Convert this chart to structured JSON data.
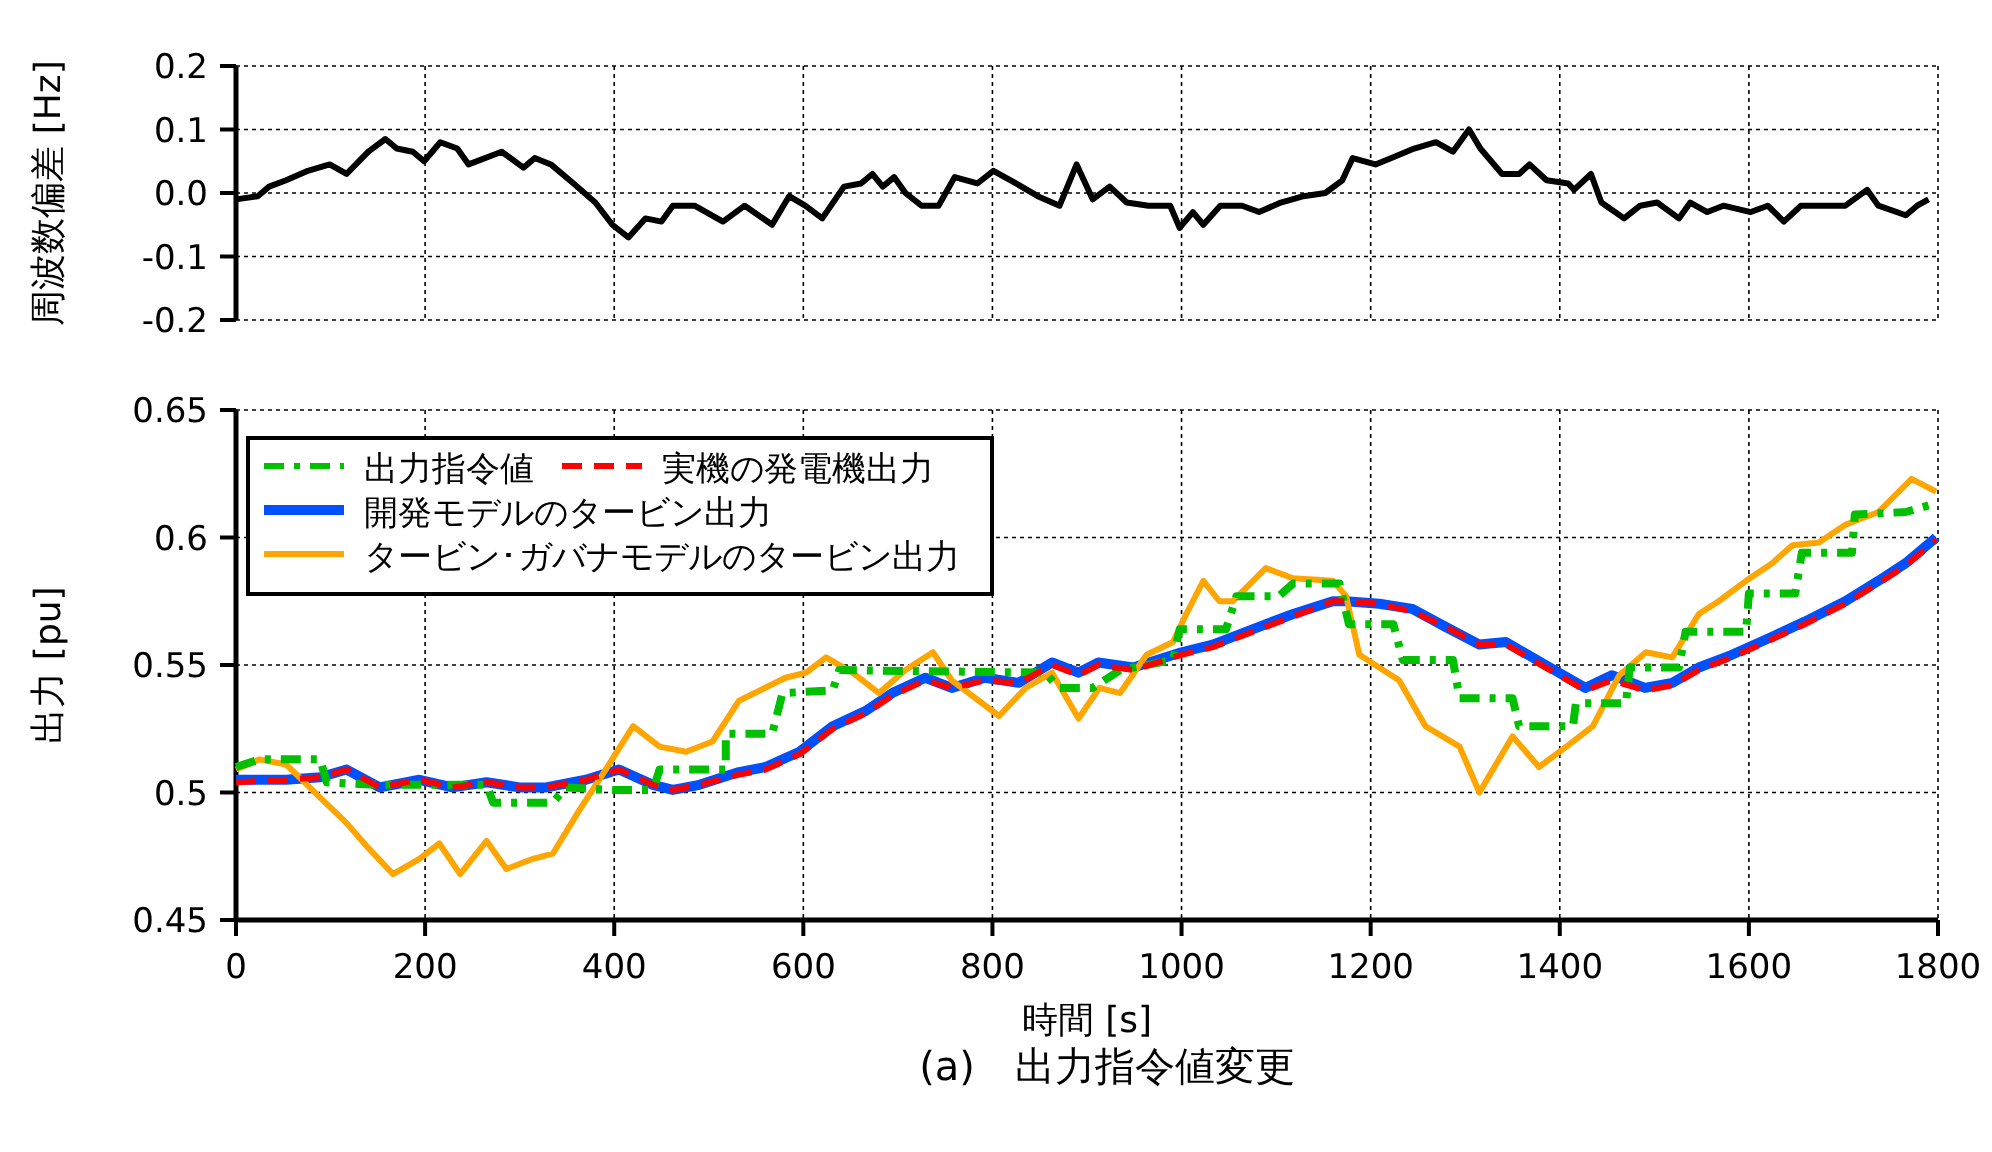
{
  "chart_data": [
    {
      "type": "line",
      "ylabel": "周波数偏差 [Hz]",
      "xlim": [
        0,
        1800
      ],
      "xticks": [
        0,
        200,
        400,
        600,
        800,
        1000,
        1200,
        1400,
        1600,
        1800
      ],
      "ylim": [
        -0.2,
        0.2
      ],
      "yticks": [
        {
          "value": -0.2,
          "label": "-0.2"
        },
        {
          "value": -0.1,
          "label": "-0.1"
        },
        {
          "value": 0,
          "label": "0.0"
        },
        {
          "value": 0.1,
          "label": "0.1"
        },
        {
          "value": 0.2,
          "label": "0.2"
        }
      ],
      "grid": true,
      "tick_labels": "y",
      "legend": false,
      "series": [
        {
          "color": "#000000",
          "line_style": "solid",
          "x": [
            0,
            23,
            35,
            53,
            76,
            99,
            117,
            140,
            158,
            170,
            187,
            199,
            216,
            234,
            246,
            281,
            304,
            316,
            333,
            357,
            380,
            398,
            415,
            433,
            450,
            462,
            485,
            515,
            538,
            567,
            585,
            602,
            620,
            643,
            661,
            673,
            684,
            696,
            708,
            725,
            743,
            760,
            784,
            801,
            825,
            848,
            871,
            889,
            906,
            924,
            942,
            965,
            988,
            998,
            1012,
            1023,
            1041,
            1064,
            1082,
            1105,
            1129,
            1152,
            1170,
            1181,
            1205,
            1222,
            1246,
            1269,
            1287,
            1304,
            1316,
            1339,
            1357,
            1368,
            1386,
            1409,
            1415,
            1433,
            1444,
            1468,
            1485,
            1503,
            1526,
            1538,
            1556,
            1573,
            1602,
            1620,
            1637,
            1655,
            1678,
            1702,
            1725,
            1737,
            1766,
            1778,
            1790
          ],
          "values": [
            -0.01,
            -0.005,
            0.01,
            0.02,
            0.035,
            0.045,
            0.03,
            0.065,
            0.085,
            0.07,
            0.065,
            0.05,
            0.08,
            0.07,
            0.045,
            0.065,
            0.04,
            0.055,
            0.045,
            0.015,
            -0.015,
            -0.05,
            -0.07,
            -0.04,
            -0.045,
            -0.02,
            -0.02,
            -0.045,
            -0.02,
            -0.05,
            -0.005,
            -0.02,
            -0.04,
            0.01,
            0.015,
            0.03,
            0.01,
            0.025,
            0.0,
            -0.02,
            -0.02,
            0.025,
            0.015,
            0.035,
            0.015,
            -0.005,
            -0.02,
            0.045,
            -0.01,
            0.01,
            -0.015,
            -0.02,
            -0.02,
            -0.055,
            -0.03,
            -0.05,
            -0.02,
            -0.02,
            -0.03,
            -0.015,
            -0.005,
            0.0,
            0.02,
            0.055,
            0.045,
            0.055,
            0.07,
            0.08,
            0.065,
            0.1,
            0.07,
            0.03,
            0.03,
            0.045,
            0.02,
            0.015,
            0.005,
            0.03,
            -0.015,
            -0.04,
            -0.02,
            -0.015,
            -0.04,
            -0.015,
            -0.03,
            -0.02,
            -0.03,
            -0.02,
            -0.045,
            -0.02,
            -0.02,
            -0.02,
            0.005,
            -0.02,
            -0.035,
            -0.02,
            -0.01
          ]
        }
      ]
    },
    {
      "type": "line",
      "xlabel": "時間 [s]",
      "ylabel": "出力 [pu]",
      "xlim": [
        0,
        1800
      ],
      "xticks": [
        0,
        200,
        400,
        600,
        800,
        1000,
        1200,
        1400,
        1600,
        1800
      ],
      "ylim": [
        0.45,
        0.65
      ],
      "yticks": [
        0.45,
        0.5,
        0.55,
        0.6,
        0.65
      ],
      "grid": true,
      "legend": "top left",
      "annotations": [
        "(a)　出力指令値変更"
      ],
      "series": [
        {
          "name": "出力指令値",
          "color": "#00c000",
          "line_style": "dashdot",
          "x": [
            0,
            25,
            89,
            96,
            152,
            194,
            265,
            272,
            335,
            349,
            398,
            441,
            448,
            518,
            518,
            567,
            578,
            631,
            638,
            856,
            870,
            898,
            906,
            935,
            991,
            998,
            1047,
            1058,
            1103,
            1118,
            1167,
            1177,
            1224,
            1234,
            1287,
            1294,
            1350,
            1357,
            1414,
            1417,
            1470,
            1474,
            1526,
            1533,
            1597,
            1600,
            1649,
            1656,
            1709,
            1712,
            1766,
            1794
          ],
          "values": [
            0.51,
            0.513,
            0.513,
            0.504,
            0.503,
            0.503,
            0.503,
            0.496,
            0.496,
            0.502,
            0.501,
            0.501,
            0.509,
            0.509,
            0.523,
            0.523,
            0.539,
            0.54,
            0.548,
            0.547,
            0.541,
            0.541,
            0.541,
            0.548,
            0.552,
            0.564,
            0.564,
            0.577,
            0.577,
            0.582,
            0.582,
            0.566,
            0.566,
            0.552,
            0.552,
            0.537,
            0.537,
            0.526,
            0.526,
            0.535,
            0.535,
            0.549,
            0.549,
            0.563,
            0.563,
            0.578,
            0.578,
            0.594,
            0.594,
            0.609,
            0.61,
            0.613
          ]
        },
        {
          "name": "実機の発電機出力",
          "color": "#ff0000",
          "line_style": "dashed",
          "x": [
            0,
            53,
            89,
            117,
            152,
            194,
            229,
            265,
            300,
            328,
            370,
            405,
            441,
            462,
            490,
            532,
            560,
            596,
            631,
            666,
            694,
            729,
            757,
            792,
            828,
            863,
            891,
            912,
            949,
            1000,
            1033,
            1075,
            1118,
            1160,
            1174,
            1209,
            1244,
            1279,
            1315,
            1343,
            1385,
            1427,
            1455,
            1490,
            1519,
            1547,
            1582,
            1624,
            1659,
            1702,
            1737,
            1766,
            1798
          ],
          "values": [
            0.504,
            0.505,
            0.506,
            0.509,
            0.502,
            0.505,
            0.502,
            0.504,
            0.502,
            0.502,
            0.505,
            0.509,
            0.503,
            0.501,
            0.503,
            0.507,
            0.509,
            0.515,
            0.525,
            0.531,
            0.538,
            0.544,
            0.541,
            0.544,
            0.543,
            0.55,
            0.546,
            0.55,
            0.548,
            0.554,
            0.557,
            0.563,
            0.569,
            0.575,
            0.575,
            0.574,
            0.571,
            0.565,
            0.558,
            0.558,
            0.549,
            0.54,
            0.544,
            0.54,
            0.542,
            0.548,
            0.553,
            0.56,
            0.566,
            0.574,
            0.582,
            0.589,
            0.599
          ]
        },
        {
          "name": "開発モデルのタービン出力",
          "color": "#0050ff",
          "line_style": "solid",
          "x": [
            0,
            53,
            89,
            117,
            152,
            194,
            229,
            265,
            300,
            328,
            370,
            405,
            441,
            462,
            490,
            532,
            560,
            596,
            631,
            666,
            694,
            729,
            757,
            792,
            828,
            863,
            891,
            912,
            949,
            1000,
            1033,
            1075,
            1118,
            1160,
            1174,
            1209,
            1244,
            1279,
            1315,
            1343,
            1385,
            1427,
            1455,
            1490,
            1519,
            1547,
            1582,
            1624,
            1659,
            1702,
            1737,
            1766,
            1798
          ],
          "values": [
            0.505,
            0.505,
            0.506,
            0.509,
            0.502,
            0.505,
            0.502,
            0.504,
            0.502,
            0.502,
            0.505,
            0.509,
            0.503,
            0.501,
            0.503,
            0.508,
            0.51,
            0.516,
            0.526,
            0.532,
            0.539,
            0.545,
            0.541,
            0.545,
            0.543,
            0.551,
            0.547,
            0.551,
            0.549,
            0.555,
            0.558,
            0.564,
            0.57,
            0.575,
            0.575,
            0.574,
            0.572,
            0.565,
            0.558,
            0.559,
            0.55,
            0.541,
            0.546,
            0.541,
            0.543,
            0.549,
            0.554,
            0.561,
            0.567,
            0.575,
            0.583,
            0.59,
            0.6
          ]
        },
        {
          "name": "タービン･ガバナモデルのタービン出力",
          "color": "#ffa500",
          "line_style": "solid",
          "x": [
            0,
            25,
            53,
            89,
            117,
            138,
            166,
            194,
            215,
            237,
            265,
            286,
            314,
            335,
            363,
            391,
            420,
            448,
            476,
            504,
            532,
            581,
            603,
            624,
            652,
            680,
            708,
            737,
            757,
            807,
            835,
            863,
            891,
            913,
            935,
            963,
            991,
            1005,
            1023,
            1040,
            1054,
            1089,
            1118,
            1160,
            1174,
            1188,
            1230,
            1258,
            1294,
            1315,
            1350,
            1378,
            1407,
            1435,
            1463,
            1491,
            1519,
            1547,
            1568,
            1597,
            1625,
            1646,
            1674,
            1702,
            1737,
            1772,
            1798
          ],
          "values": [
            0.509,
            0.513,
            0.511,
            0.498,
            0.488,
            0.479,
            0.468,
            0.474,
            0.48,
            0.468,
            0.481,
            0.47,
            0.474,
            0.476,
            0.493,
            0.509,
            0.526,
            0.518,
            0.516,
            0.52,
            0.536,
            0.545,
            0.547,
            0.553,
            0.547,
            0.539,
            0.548,
            0.555,
            0.544,
            0.53,
            0.541,
            0.547,
            0.529,
            0.541,
            0.539,
            0.554,
            0.559,
            0.57,
            0.583,
            0.575,
            0.575,
            0.588,
            0.584,
            0.583,
            0.577,
            0.554,
            0.544,
            0.526,
            0.518,
            0.5,
            0.522,
            0.51,
            0.518,
            0.526,
            0.546,
            0.555,
            0.553,
            0.57,
            0.575,
            0.583,
            0.59,
            0.597,
            0.598,
            0.605,
            0.61,
            0.623,
            0.618
          ]
        }
      ]
    }
  ]
}
